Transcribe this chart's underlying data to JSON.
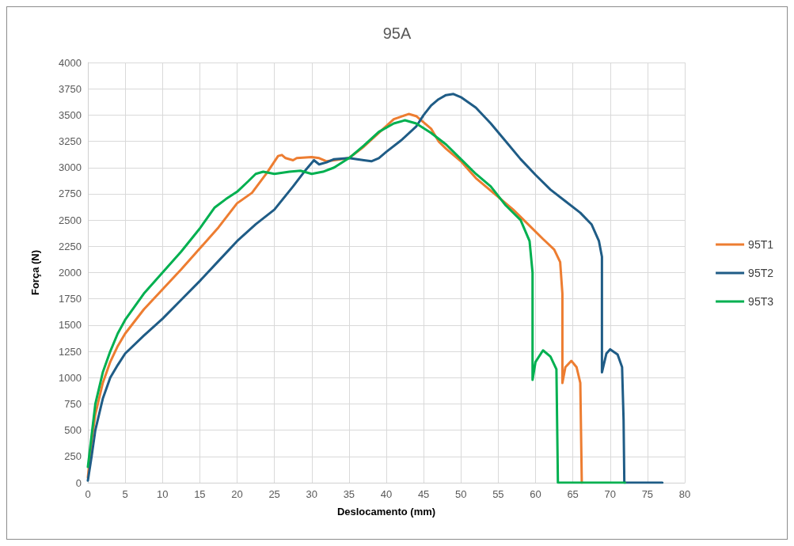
{
  "chart_data": {
    "type": "line",
    "title": "95A",
    "xlabel": "Deslocamento (mm)",
    "ylabel": "Força (N)",
    "xlim": [
      0,
      80
    ],
    "xticks": [
      0,
      5,
      10,
      15,
      20,
      25,
      30,
      35,
      40,
      45,
      50,
      55,
      60,
      65,
      70,
      75,
      80
    ],
    "ylim": [
      0,
      4000
    ],
    "yticks": [
      0,
      250,
      500,
      750,
      1000,
      1250,
      1500,
      1750,
      2000,
      2250,
      2500,
      2750,
      3000,
      3250,
      3500,
      3750,
      4000
    ],
    "grid": true,
    "legend": "right",
    "marker": "none",
    "line_style": "solid",
    "series": [
      {
        "name": "95T1",
        "color": "#ed7d31",
        "x": [
          0,
          0.5,
          1,
          2,
          3,
          4,
          5,
          7.5,
          10,
          12.5,
          15,
          17.5,
          20,
          22,
          24,
          25.5,
          26,
          26.5,
          27.5,
          28,
          30,
          31,
          32,
          33,
          35,
          37,
          39,
          41,
          43,
          44,
          46,
          47,
          48,
          50,
          52,
          55,
          57,
          59,
          61,
          62.5,
          63.3,
          63.6,
          63.6,
          64,
          64.8,
          65.5,
          66,
          66.2
        ],
        "values": [
          50,
          400,
          650,
          950,
          1150,
          1300,
          1420,
          1650,
          1840,
          2030,
          2230,
          2430,
          2660,
          2760,
          2950,
          3110,
          3120,
          3090,
          3070,
          3090,
          3100,
          3090,
          3060,
          3070,
          3090,
          3200,
          3330,
          3460,
          3510,
          3490,
          3370,
          3250,
          3180,
          3060,
          2900,
          2720,
          2600,
          2460,
          2320,
          2220,
          2100,
          1800,
          950,
          1100,
          1160,
          1100,
          950,
          0
        ]
      },
      {
        "name": "95T2",
        "color": "#1f5c86",
        "x": [
          0,
          0.5,
          1,
          2,
          3,
          4,
          5,
          7.5,
          10,
          12.5,
          15,
          17.5,
          20,
          22.5,
          25,
          27.5,
          29,
          30.3,
          31,
          32,
          33,
          35,
          37,
          38,
          39,
          40,
          42,
          44,
          45,
          46,
          47,
          48,
          49,
          50,
          52,
          54,
          56,
          58,
          60,
          62,
          64,
          66,
          67.5,
          68.5,
          68.9,
          68.9,
          69.5,
          70,
          71,
          71.6,
          71.8,
          71.9,
          77
        ],
        "values": [
          20,
          250,
          500,
          800,
          1000,
          1120,
          1230,
          1400,
          1560,
          1740,
          1920,
          2110,
          2300,
          2460,
          2600,
          2820,
          2960,
          3070,
          3030,
          3050,
          3080,
          3090,
          3070,
          3060,
          3090,
          3150,
          3260,
          3390,
          3500,
          3590,
          3650,
          3690,
          3700,
          3670,
          3570,
          3420,
          3250,
          3080,
          2930,
          2790,
          2680,
          2570,
          2460,
          2300,
          2150,
          1050,
          1230,
          1270,
          1220,
          1100,
          600,
          0,
          0
        ]
      },
      {
        "name": "95T3",
        "color": "#00b050",
        "x": [
          0,
          0.5,
          1,
          2,
          3,
          4,
          5,
          7.5,
          10,
          12.5,
          15,
          17,
          18.5,
          20,
          21.5,
          22.5,
          23.5,
          25,
          27,
          28.5,
          30,
          31.5,
          33,
          35,
          37,
          39,
          41,
          42.5,
          44,
          46,
          48,
          50,
          52,
          54,
          56,
          58,
          59.2,
          59.6,
          59.6,
          60,
          61,
          62,
          62.8,
          63,
          72
        ],
        "values": [
          150,
          450,
          750,
          1050,
          1250,
          1420,
          1550,
          1800,
          2000,
          2200,
          2420,
          2620,
          2700,
          2770,
          2870,
          2940,
          2960,
          2940,
          2960,
          2970,
          2940,
          2960,
          3000,
          3090,
          3210,
          3340,
          3420,
          3450,
          3420,
          3330,
          3220,
          3080,
          2940,
          2820,
          2640,
          2500,
          2300,
          2000,
          980,
          1150,
          1260,
          1200,
          1080,
          0,
          0
        ]
      }
    ]
  }
}
